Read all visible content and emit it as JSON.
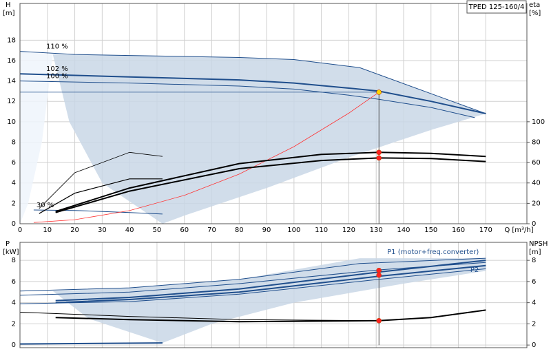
{
  "chart_data": [
    {
      "type": "line",
      "title": "TPED 125-160/4",
      "xlabel": "Q [m³/h]",
      "ylabel": "H",
      "yunit": "[m]",
      "y2label": "eta",
      "y2unit": "[%]",
      "xlim": [
        0,
        185
      ],
      "xticks": [
        0,
        10,
        20,
        30,
        40,
        50,
        60,
        70,
        80,
        90,
        100,
        110,
        120,
        130,
        140,
        150,
        160,
        170
      ],
      "ylim": [
        0,
        21.6
      ],
      "yticks": [
        0,
        2,
        4,
        6,
        8,
        10,
        12,
        14,
        16,
        18
      ],
      "y2lim": [
        0,
        216
      ],
      "y2ticks": [
        0,
        20,
        40,
        60,
        80,
        100
      ],
      "grid": true,
      "series": [
        {
          "kind": "area",
          "color": "#eef4fb",
          "x": [
            0,
            12,
            8,
            3,
            0
          ],
          "values": [
            16.9,
            16.6,
            8,
            2,
            0
          ]
        },
        {
          "kind": "area",
          "color": "#c9d7e6",
          "x": [
            12,
            60,
            100,
            124,
            170,
            150,
            120,
            90,
            60,
            52,
            30,
            18,
            12
          ],
          "values": [
            16.6,
            16.4,
            16.1,
            15.3,
            10.8,
            9.2,
            6.5,
            3.5,
            0.8,
            0,
            4,
            10,
            16.6
          ]
        },
        {
          "name": "110 %",
          "color": "#1f4e8c",
          "width": 1,
          "x": [
            0,
            20,
            40,
            60,
            80,
            100,
            124,
            170
          ],
          "values": [
            16.9,
            16.6,
            16.5,
            16.4,
            16.3,
            16.1,
            15.3,
            10.8
          ]
        },
        {
          "name": "102 %",
          "color": "#1f4e8c",
          "width": 2,
          "x": [
            0,
            40,
            80,
            100,
            120,
            131,
            150,
            170
          ],
          "values": [
            14.7,
            14.4,
            14.1,
            13.8,
            13.3,
            13.0,
            12.0,
            10.8
          ]
        },
        {
          "name": "100 %",
          "color": "#1f4e8c",
          "width": 1,
          "x": [
            0,
            40,
            80,
            100,
            120,
            131,
            150,
            166
          ],
          "values": [
            14.0,
            13.8,
            13.5,
            13.2,
            12.6,
            12.2,
            11.4,
            10.4
          ]
        },
        {
          "name": "30 %",
          "color": "#1f4e8c",
          "width": 1,
          "x": [
            5,
            20,
            40,
            52
          ],
          "values": [
            1.35,
            1.3,
            1.1,
            0.95
          ]
        },
        {
          "color": "#1f4e8c",
          "width": 0.8,
          "x": [
            0,
            131
          ],
          "values": [
            12.9,
            12.9
          ]
        },
        {
          "color": "#333333",
          "width": 0.8,
          "x": [
            131,
            131
          ],
          "values": [
            0,
            12.9
          ]
        },
        {
          "color": "#ff3333",
          "width": 0.8,
          "x": [
            5,
            20,
            40,
            60,
            80,
            100,
            120,
            131
          ],
          "values": [
            0.12,
            0.4,
            1.29,
            2.79,
            4.87,
            7.56,
            10.84,
            12.9
          ]
        },
        {
          "color": "#000000",
          "width": 2,
          "axis": "y2",
          "x": [
            13,
            40,
            80,
            110,
            131,
            150,
            170
          ],
          "values": [
            12,
            35,
            59,
            68,
            70,
            69,
            66
          ]
        },
        {
          "color": "#000000",
          "width": 2,
          "axis": "y2",
          "x": [
            13,
            40,
            80,
            110,
            131,
            150,
            170
          ],
          "values": [
            11,
            32,
            54,
            62,
            64.5,
            64,
            61
          ]
        },
        {
          "color": "#000000",
          "width": 0.8,
          "axis": "y2",
          "x": [
            7,
            20,
            40,
            52
          ],
          "values": [
            15,
            50,
            70,
            66
          ]
        },
        {
          "color": "#000000",
          "width": 1.2,
          "axis": "y2",
          "x": [
            7,
            20,
            40,
            52
          ],
          "values": [
            10,
            30,
            44,
            44
          ]
        }
      ],
      "points": [
        {
          "x": 131,
          "y": 12.9,
          "color": "#ffd700"
        },
        {
          "x": 131,
          "y": 70,
          "color": "#ff2020",
          "axis": "y2"
        },
        {
          "x": 131,
          "y": 64.5,
          "color": "#ff2020",
          "axis": "y2"
        }
      ]
    },
    {
      "type": "line",
      "ylabel": "P",
      "yunit": "[kW]",
      "y2label": "NPSH",
      "y2unit": "[m]",
      "xlim": [
        0,
        185
      ],
      "xticks": [
        0,
        10,
        20,
        30,
        40,
        50,
        60,
        70,
        80,
        90,
        100,
        110,
        120,
        130,
        140,
        150,
        160,
        170
      ],
      "ylim": [
        -0.25,
        9.7
      ],
      "yticks": [
        0,
        2,
        4,
        6,
        8
      ],
      "y2lim": [
        -0.25,
        9.7
      ],
      "y2ticks": [
        0,
        2,
        4,
        6,
        8
      ],
      "grid": true,
      "series": [
        {
          "kind": "area",
          "color": "#c9d7e6",
          "x": [
            12,
            40,
            80,
            124,
            170,
            170,
            140,
            100,
            70,
            52,
            25,
            12
          ],
          "values": [
            5.1,
            5.4,
            6.2,
            8.2,
            8.2,
            7.0,
            5.8,
            4.0,
            2.0,
            0.2,
            2.5,
            5.1
          ]
        },
        {
          "color": "#1f4e8c",
          "width": 1,
          "x": [
            0,
            40,
            80,
            124,
            170
          ],
          "values": [
            5.1,
            5.4,
            6.2,
            7.7,
            8.2
          ]
        },
        {
          "name": "P1 (motor+freq.converter)",
          "color": "#1f4e8c",
          "width": 2,
          "x": [
            13,
            40,
            80,
            131,
            170
          ],
          "values": [
            4.2,
            4.5,
            5.3,
            6.9,
            8.0
          ]
        },
        {
          "color": "#1f4e8c",
          "width": 1,
          "x": [
            0,
            40,
            80,
            131,
            170
          ],
          "values": [
            4.7,
            5.0,
            5.8,
            7.1,
            7.8
          ]
        },
        {
          "name": "P2",
          "color": "#1f4e8c",
          "width": 2,
          "x": [
            13,
            40,
            80,
            131,
            170
          ],
          "values": [
            4.0,
            4.3,
            5.0,
            6.5,
            7.5
          ]
        },
        {
          "color": "#1f4e8c",
          "width": 1,
          "x": [
            0,
            40,
            80,
            131,
            170
          ],
          "values": [
            3.9,
            4.1,
            4.8,
            6.2,
            7.2
          ]
        },
        {
          "color": "#1f4e8c",
          "width": 2,
          "x": [
            0,
            52
          ],
          "values": [
            0.1,
            0.2
          ]
        },
        {
          "color": "#333333",
          "width": 0.8,
          "x": [
            131,
            131
          ],
          "values": [
            0,
            7.05
          ]
        },
        {
          "color": "#000000",
          "width": 1,
          "axis": "y2",
          "x": [
            0,
            40,
            80,
            131
          ],
          "values": [
            3.1,
            2.7,
            2.4,
            2.3
          ]
        },
        {
          "color": "#000000",
          "width": 2,
          "axis": "y2",
          "x": [
            13,
            40,
            80,
            131,
            150,
            170
          ],
          "values": [
            2.6,
            2.4,
            2.2,
            2.3,
            2.6,
            3.3
          ]
        }
      ],
      "points": [
        {
          "x": 131,
          "y": 7.05,
          "color": "#ff2020"
        },
        {
          "x": 131,
          "y": 6.6,
          "color": "#ff2020"
        },
        {
          "x": 131,
          "y": 2.3,
          "color": "#ff2020",
          "axis": "y2"
        }
      ]
    }
  ]
}
